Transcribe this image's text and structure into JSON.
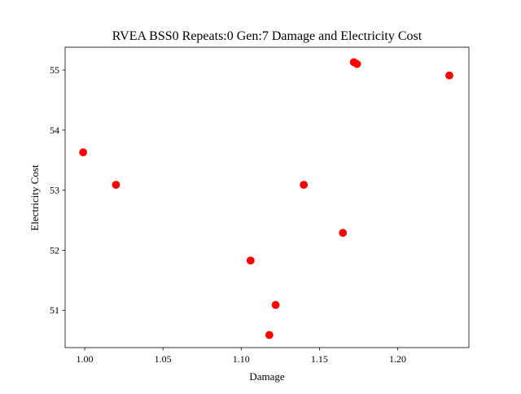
{
  "chart_data": {
    "type": "scatter",
    "title": "RVEA BSS0 Repeats:0 Gen:7 Damage and Electricity Cost",
    "xlabel": "Damage",
    "ylabel": "Electricity Cost",
    "xlim": [
      0.9875,
      1.2455
    ],
    "ylim": [
      50.38,
      55.38
    ],
    "x_ticks": [
      1.0,
      1.05,
      1.1,
      1.15,
      1.2
    ],
    "x_tick_labels": [
      "1.00",
      "1.05",
      "1.10",
      "1.15",
      "1.20"
    ],
    "y_ticks": [
      51,
      52,
      53,
      54,
      55
    ],
    "y_tick_labels": [
      "51",
      "52",
      "53",
      "54",
      "55"
    ],
    "grid": false,
    "marker_color": "#ff0000",
    "points": [
      {
        "x": 0.999,
        "y": 53.63
      },
      {
        "x": 1.02,
        "y": 53.09
      },
      {
        "x": 1.106,
        "y": 51.83
      },
      {
        "x": 1.118,
        "y": 50.59
      },
      {
        "x": 1.122,
        "y": 51.09
      },
      {
        "x": 1.14,
        "y": 53.09
      },
      {
        "x": 1.165,
        "y": 52.29
      },
      {
        "x": 1.172,
        "y": 55.13
      },
      {
        "x": 1.174,
        "y": 55.1
      },
      {
        "x": 1.233,
        "y": 54.91
      }
    ]
  }
}
